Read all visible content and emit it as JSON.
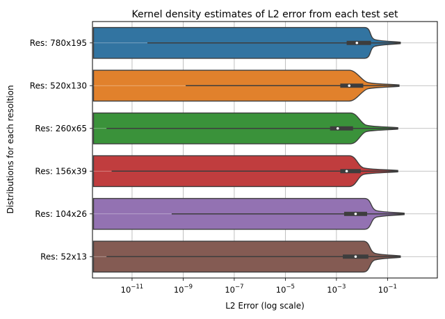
{
  "chart_data": {
    "type": "violin",
    "orientation": "horizontal",
    "title": "Kernel density estimates of L2 error from each test set",
    "xlabel": "L2 Error (log scale)",
    "ylabel": "Distributions for each resoltion",
    "xscale": "log",
    "xlim_exponent": [
      -12.55,
      0.95
    ],
    "xticks": [
      {
        "base": "10",
        "exp": "−11",
        "value_exp": -11
      },
      {
        "base": "10",
        "exp": "−9",
        "value_exp": -9
      },
      {
        "base": "10",
        "exp": "−7",
        "value_exp": -7
      },
      {
        "base": "10",
        "exp": "−5",
        "value_exp": -5
      },
      {
        "base": "10",
        "exp": "−3",
        "value_exp": -3
      },
      {
        "base": "10",
        "exp": "−1",
        "value_exp": -1
      }
    ],
    "grid": true,
    "categories": [
      "Res: 780x195",
      "Res: 520x130",
      "Res: 260x65",
      "Res: 156x39",
      "Res: 104x26",
      "Res: 52x13"
    ],
    "series": [
      {
        "label": "Res: 780x195",
        "color": "#3274a1",
        "min_exp": -10.4,
        "q1_exp": -2.6,
        "median_exp": -2.2,
        "q3_exp": -1.65,
        "max_exp": -0.5,
        "flat_end_exp": -1.9,
        "peak_end_exp": -1.5
      },
      {
        "label": "Res: 520x130",
        "color": "#e1812c",
        "min_exp": -8.9,
        "q1_exp": -2.85,
        "median_exp": -2.5,
        "q3_exp": -1.95,
        "max_exp": -0.55,
        "flat_end_exp": -2.5,
        "peak_end_exp": -1.8
      },
      {
        "label": "Res: 260x65",
        "color": "#3a923a",
        "min_exp": -12.0,
        "q1_exp": -3.25,
        "median_exp": -2.95,
        "q3_exp": -2.35,
        "max_exp": -0.6,
        "flat_end_exp": -2.45,
        "peak_end_exp": -1.85
      },
      {
        "label": "Res: 156x39",
        "color": "#c03d3e",
        "min_exp": -11.8,
        "q1_exp": -2.85,
        "median_exp": -2.6,
        "q3_exp": -2.05,
        "max_exp": -0.6,
        "flat_end_exp": -2.5,
        "peak_end_exp": -1.95
      },
      {
        "label": "Res: 104x26",
        "color": "#9372b2",
        "min_exp": -9.45,
        "q1_exp": -2.7,
        "median_exp": -2.25,
        "q3_exp": -1.8,
        "max_exp": -0.35,
        "flat_end_exp": -1.9,
        "peak_end_exp": -1.45
      },
      {
        "label": "Res: 52x13",
        "color": "#845b53",
        "min_exp": -12.0,
        "q1_exp": -2.75,
        "median_exp": -2.25,
        "q3_exp": -1.75,
        "max_exp": -0.5,
        "flat_end_exp": -1.95,
        "peak_end_exp": -1.5
      }
    ]
  }
}
